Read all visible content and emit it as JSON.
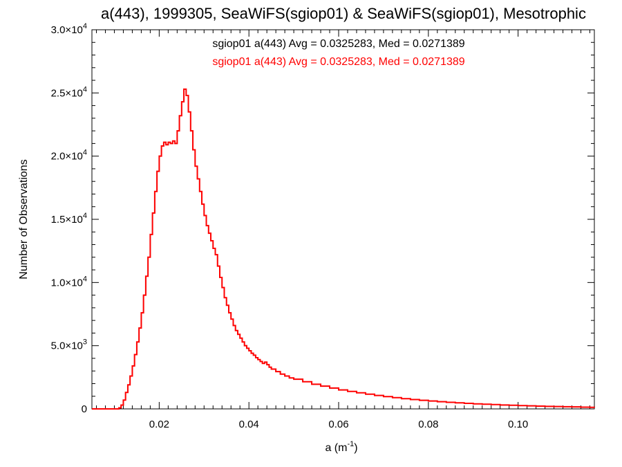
{
  "chart_data": {
    "type": "line",
    "style": "step",
    "title": "a(443), 1999305, SeaWiFS(sgiop01) & SeaWiFS(sgiop01), Mesotrophic",
    "xlabel": "a (m",
    "xlabel_sup": "-1",
    "xlabel_close": ")",
    "ylabel": "Number of Observations",
    "xlim": [
      0.005,
      0.117
    ],
    "ylim": [
      0,
      30000
    ],
    "grid": false,
    "annotations": [
      {
        "text": "sgiop01 a(443) Avg = 0.0325283, Med = 0.0271389",
        "color": "#000000"
      },
      {
        "text": "sgiop01 a(443) Avg = 0.0325283, Med = 0.0271389",
        "color": "#ff0000"
      }
    ],
    "x_ticks": [
      {
        "value": 0.02,
        "label": "0.02"
      },
      {
        "value": 0.04,
        "label": "0.04"
      },
      {
        "value": 0.06,
        "label": "0.06"
      },
      {
        "value": 0.08,
        "label": "0.08"
      },
      {
        "value": 0.1,
        "label": "0.10"
      }
    ],
    "y_ticks": [
      {
        "value": 0,
        "mant": "0",
        "exp": ""
      },
      {
        "value": 5000,
        "mant": "5.0×10",
        "exp": "3"
      },
      {
        "value": 10000,
        "mant": "1.0×10",
        "exp": "4"
      },
      {
        "value": 15000,
        "mant": "1.5×10",
        "exp": "4"
      },
      {
        "value": 20000,
        "mant": "2.0×10",
        "exp": "4"
      },
      {
        "value": 25000,
        "mant": "2.5×10",
        "exp": "4"
      },
      {
        "value": 30000,
        "mant": "3.0×10",
        "exp": "4"
      }
    ],
    "series": [
      {
        "color": "#000000",
        "points": [
          [
            0.005,
            0
          ],
          [
            0.0105,
            0
          ],
          [
            0.011,
            80
          ],
          [
            0.0115,
            300
          ],
          [
            0.012,
            700
          ],
          [
            0.0125,
            1300
          ],
          [
            0.013,
            1900
          ],
          [
            0.0135,
            2600
          ],
          [
            0.014,
            3400
          ],
          [
            0.0145,
            4300
          ],
          [
            0.015,
            5300
          ],
          [
            0.0155,
            6400
          ],
          [
            0.016,
            7600
          ],
          [
            0.0165,
            9000
          ],
          [
            0.017,
            10500
          ],
          [
            0.0175,
            12000
          ],
          [
            0.018,
            13800
          ],
          [
            0.0185,
            15500
          ],
          [
            0.019,
            17200
          ],
          [
            0.0195,
            18800
          ],
          [
            0.02,
            20000
          ],
          [
            0.0205,
            20800
          ],
          [
            0.021,
            21100
          ],
          [
            0.0215,
            20900
          ],
          [
            0.022,
            21100
          ],
          [
            0.0225,
            21000
          ],
          [
            0.023,
            21200
          ],
          [
            0.0235,
            21000
          ],
          [
            0.024,
            22000
          ],
          [
            0.0245,
            23200
          ],
          [
            0.025,
            24300
          ],
          [
            0.0255,
            25300
          ],
          [
            0.026,
            24800
          ],
          [
            0.0265,
            23500
          ],
          [
            0.027,
            22000
          ],
          [
            0.0275,
            20500
          ],
          [
            0.028,
            19200
          ],
          [
            0.0285,
            18200
          ],
          [
            0.029,
            17200
          ],
          [
            0.0295,
            16200
          ],
          [
            0.03,
            15300
          ],
          [
            0.0305,
            14500
          ],
          [
            0.031,
            13900
          ],
          [
            0.0315,
            13300
          ],
          [
            0.032,
            12700
          ],
          [
            0.0325,
            12200
          ],
          [
            0.033,
            11300
          ],
          [
            0.0335,
            10400
          ],
          [
            0.034,
            9600
          ],
          [
            0.0345,
            8800
          ],
          [
            0.035,
            8200
          ],
          [
            0.0355,
            7600
          ],
          [
            0.036,
            7100
          ],
          [
            0.0365,
            6600
          ],
          [
            0.037,
            6200
          ],
          [
            0.0375,
            5900
          ],
          [
            0.038,
            5600
          ],
          [
            0.0385,
            5300
          ],
          [
            0.039,
            5000
          ],
          [
            0.0395,
            4800
          ],
          [
            0.04,
            4600
          ],
          [
            0.0405,
            4400
          ],
          [
            0.041,
            4250
          ],
          [
            0.0415,
            4050
          ],
          [
            0.042,
            3900
          ],
          [
            0.0425,
            3750
          ],
          [
            0.043,
            3600
          ],
          [
            0.0435,
            3700
          ],
          [
            0.044,
            3500
          ],
          [
            0.0445,
            3300
          ],
          [
            0.045,
            3150
          ],
          [
            0.046,
            2950
          ],
          [
            0.047,
            2750
          ],
          [
            0.048,
            2600
          ],
          [
            0.049,
            2450
          ],
          [
            0.05,
            2350
          ],
          [
            0.052,
            2150
          ],
          [
            0.054,
            1950
          ],
          [
            0.056,
            1800
          ],
          [
            0.058,
            1650
          ],
          [
            0.06,
            1500
          ],
          [
            0.062,
            1380
          ],
          [
            0.064,
            1270
          ],
          [
            0.066,
            1160
          ],
          [
            0.068,
            1060
          ],
          [
            0.07,
            970
          ],
          [
            0.072,
            890
          ],
          [
            0.074,
            810
          ],
          [
            0.076,
            740
          ],
          [
            0.078,
            680
          ],
          [
            0.08,
            620
          ],
          [
            0.082,
            570
          ],
          [
            0.084,
            520
          ],
          [
            0.086,
            480
          ],
          [
            0.088,
            440
          ],
          [
            0.09,
            400
          ],
          [
            0.092,
            370
          ],
          [
            0.094,
            340
          ],
          [
            0.096,
            310
          ],
          [
            0.098,
            285
          ],
          [
            0.1,
            260
          ],
          [
            0.102,
            240
          ],
          [
            0.104,
            220
          ],
          [
            0.106,
            200
          ],
          [
            0.108,
            185
          ],
          [
            0.11,
            170
          ],
          [
            0.112,
            155
          ],
          [
            0.114,
            140
          ],
          [
            0.116,
            120
          ],
          [
            0.117,
            110
          ]
        ]
      },
      {
        "color": "#ff0000",
        "points": [
          [
            0.005,
            0
          ],
          [
            0.0105,
            0
          ],
          [
            0.011,
            80
          ],
          [
            0.0115,
            300
          ],
          [
            0.012,
            700
          ],
          [
            0.0125,
            1300
          ],
          [
            0.013,
            1900
          ],
          [
            0.0135,
            2600
          ],
          [
            0.014,
            3400
          ],
          [
            0.0145,
            4300
          ],
          [
            0.015,
            5300
          ],
          [
            0.0155,
            6400
          ],
          [
            0.016,
            7600
          ],
          [
            0.0165,
            9000
          ],
          [
            0.017,
            10500
          ],
          [
            0.0175,
            12000
          ],
          [
            0.018,
            13800
          ],
          [
            0.0185,
            15500
          ],
          [
            0.019,
            17200
          ],
          [
            0.0195,
            18800
          ],
          [
            0.02,
            20000
          ],
          [
            0.0205,
            20800
          ],
          [
            0.021,
            21100
          ],
          [
            0.0215,
            20900
          ],
          [
            0.022,
            21100
          ],
          [
            0.0225,
            21000
          ],
          [
            0.023,
            21200
          ],
          [
            0.0235,
            21000
          ],
          [
            0.024,
            22000
          ],
          [
            0.0245,
            23200
          ],
          [
            0.025,
            24300
          ],
          [
            0.0255,
            25300
          ],
          [
            0.026,
            24800
          ],
          [
            0.0265,
            23500
          ],
          [
            0.027,
            22000
          ],
          [
            0.0275,
            20500
          ],
          [
            0.028,
            19200
          ],
          [
            0.0285,
            18200
          ],
          [
            0.029,
            17200
          ],
          [
            0.0295,
            16200
          ],
          [
            0.03,
            15300
          ],
          [
            0.0305,
            14500
          ],
          [
            0.031,
            13900
          ],
          [
            0.0315,
            13300
          ],
          [
            0.032,
            12700
          ],
          [
            0.0325,
            12200
          ],
          [
            0.033,
            11300
          ],
          [
            0.0335,
            10400
          ],
          [
            0.034,
            9600
          ],
          [
            0.0345,
            8800
          ],
          [
            0.035,
            8200
          ],
          [
            0.0355,
            7600
          ],
          [
            0.036,
            7100
          ],
          [
            0.0365,
            6600
          ],
          [
            0.037,
            6200
          ],
          [
            0.0375,
            5900
          ],
          [
            0.038,
            5600
          ],
          [
            0.0385,
            5300
          ],
          [
            0.039,
            5000
          ],
          [
            0.0395,
            4800
          ],
          [
            0.04,
            4600
          ],
          [
            0.0405,
            4400
          ],
          [
            0.041,
            4250
          ],
          [
            0.0415,
            4050
          ],
          [
            0.042,
            3900
          ],
          [
            0.0425,
            3750
          ],
          [
            0.043,
            3600
          ],
          [
            0.0435,
            3700
          ],
          [
            0.044,
            3500
          ],
          [
            0.0445,
            3300
          ],
          [
            0.045,
            3150
          ],
          [
            0.046,
            2950
          ],
          [
            0.047,
            2750
          ],
          [
            0.048,
            2600
          ],
          [
            0.049,
            2450
          ],
          [
            0.05,
            2350
          ],
          [
            0.052,
            2150
          ],
          [
            0.054,
            1950
          ],
          [
            0.056,
            1800
          ],
          [
            0.058,
            1650
          ],
          [
            0.06,
            1500
          ],
          [
            0.062,
            1380
          ],
          [
            0.064,
            1270
          ],
          [
            0.066,
            1160
          ],
          [
            0.068,
            1060
          ],
          [
            0.07,
            970
          ],
          [
            0.072,
            890
          ],
          [
            0.074,
            810
          ],
          [
            0.076,
            740
          ],
          [
            0.078,
            680
          ],
          [
            0.08,
            620
          ],
          [
            0.082,
            570
          ],
          [
            0.084,
            520
          ],
          [
            0.086,
            480
          ],
          [
            0.088,
            440
          ],
          [
            0.09,
            400
          ],
          [
            0.092,
            370
          ],
          [
            0.094,
            340
          ],
          [
            0.096,
            310
          ],
          [
            0.098,
            285
          ],
          [
            0.1,
            260
          ],
          [
            0.102,
            240
          ],
          [
            0.104,
            220
          ],
          [
            0.106,
            200
          ],
          [
            0.108,
            185
          ],
          [
            0.11,
            170
          ],
          [
            0.112,
            155
          ],
          [
            0.114,
            140
          ],
          [
            0.116,
            120
          ],
          [
            0.117,
            110
          ]
        ]
      }
    ]
  }
}
